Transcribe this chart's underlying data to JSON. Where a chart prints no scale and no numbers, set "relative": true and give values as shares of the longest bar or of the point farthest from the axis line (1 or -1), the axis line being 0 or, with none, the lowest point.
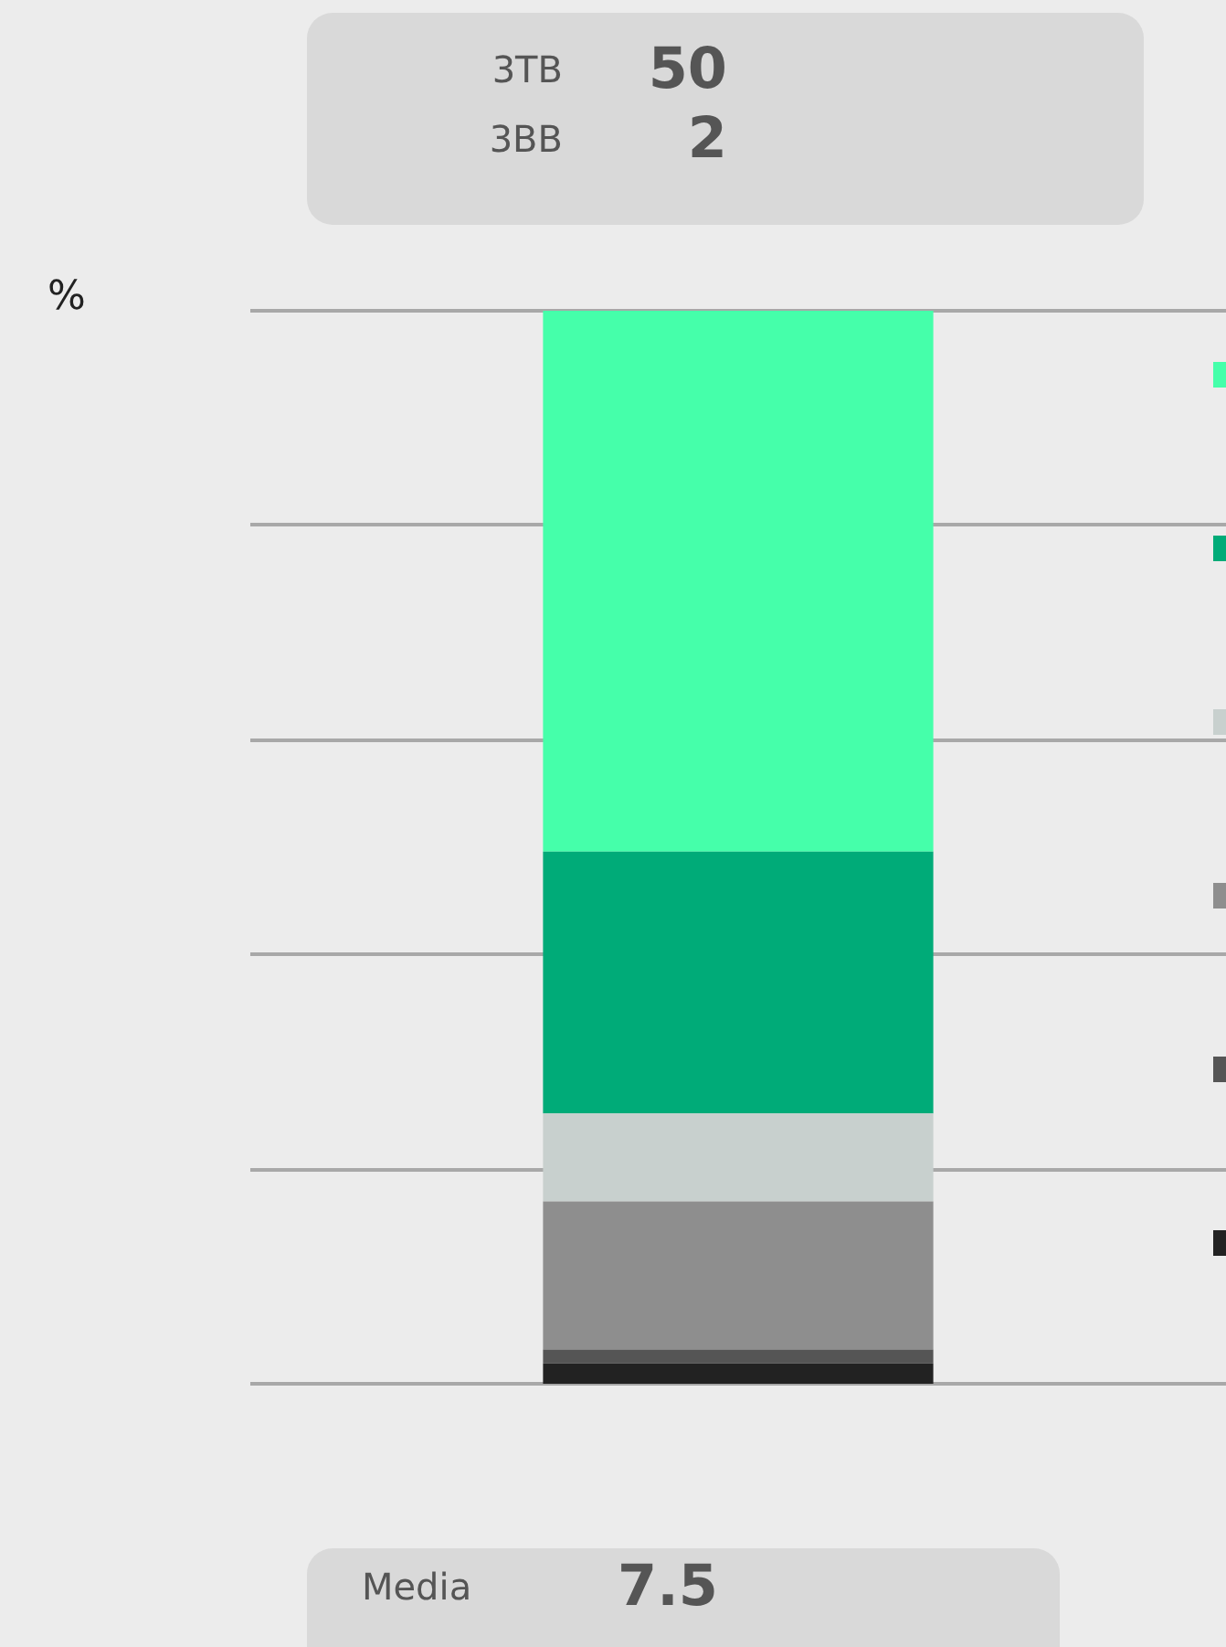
{
  "chart_data": {
    "type": "bar",
    "stacked": true,
    "relative": true,
    "categories": [
      null
    ],
    "series": [
      {
        "color": "#222222",
        "values": [
          0.019
        ]
      },
      {
        "color": "#555555",
        "values": [
          0.013
        ]
      },
      {
        "color": "#8e8e8e",
        "values": [
          0.138
        ]
      },
      {
        "color": "#c8d0ce",
        "values": [
          0.082
        ]
      },
      {
        "color": "#00ab78",
        "values": [
          0.244
        ]
      },
      {
        "color": "#45ffaa",
        "values": [
          0.504
        ]
      }
    ],
    "annotations": [
      "%",
      "3TB 50",
      "3BB 2",
      "Media 7.5"
    ]
  }
}
